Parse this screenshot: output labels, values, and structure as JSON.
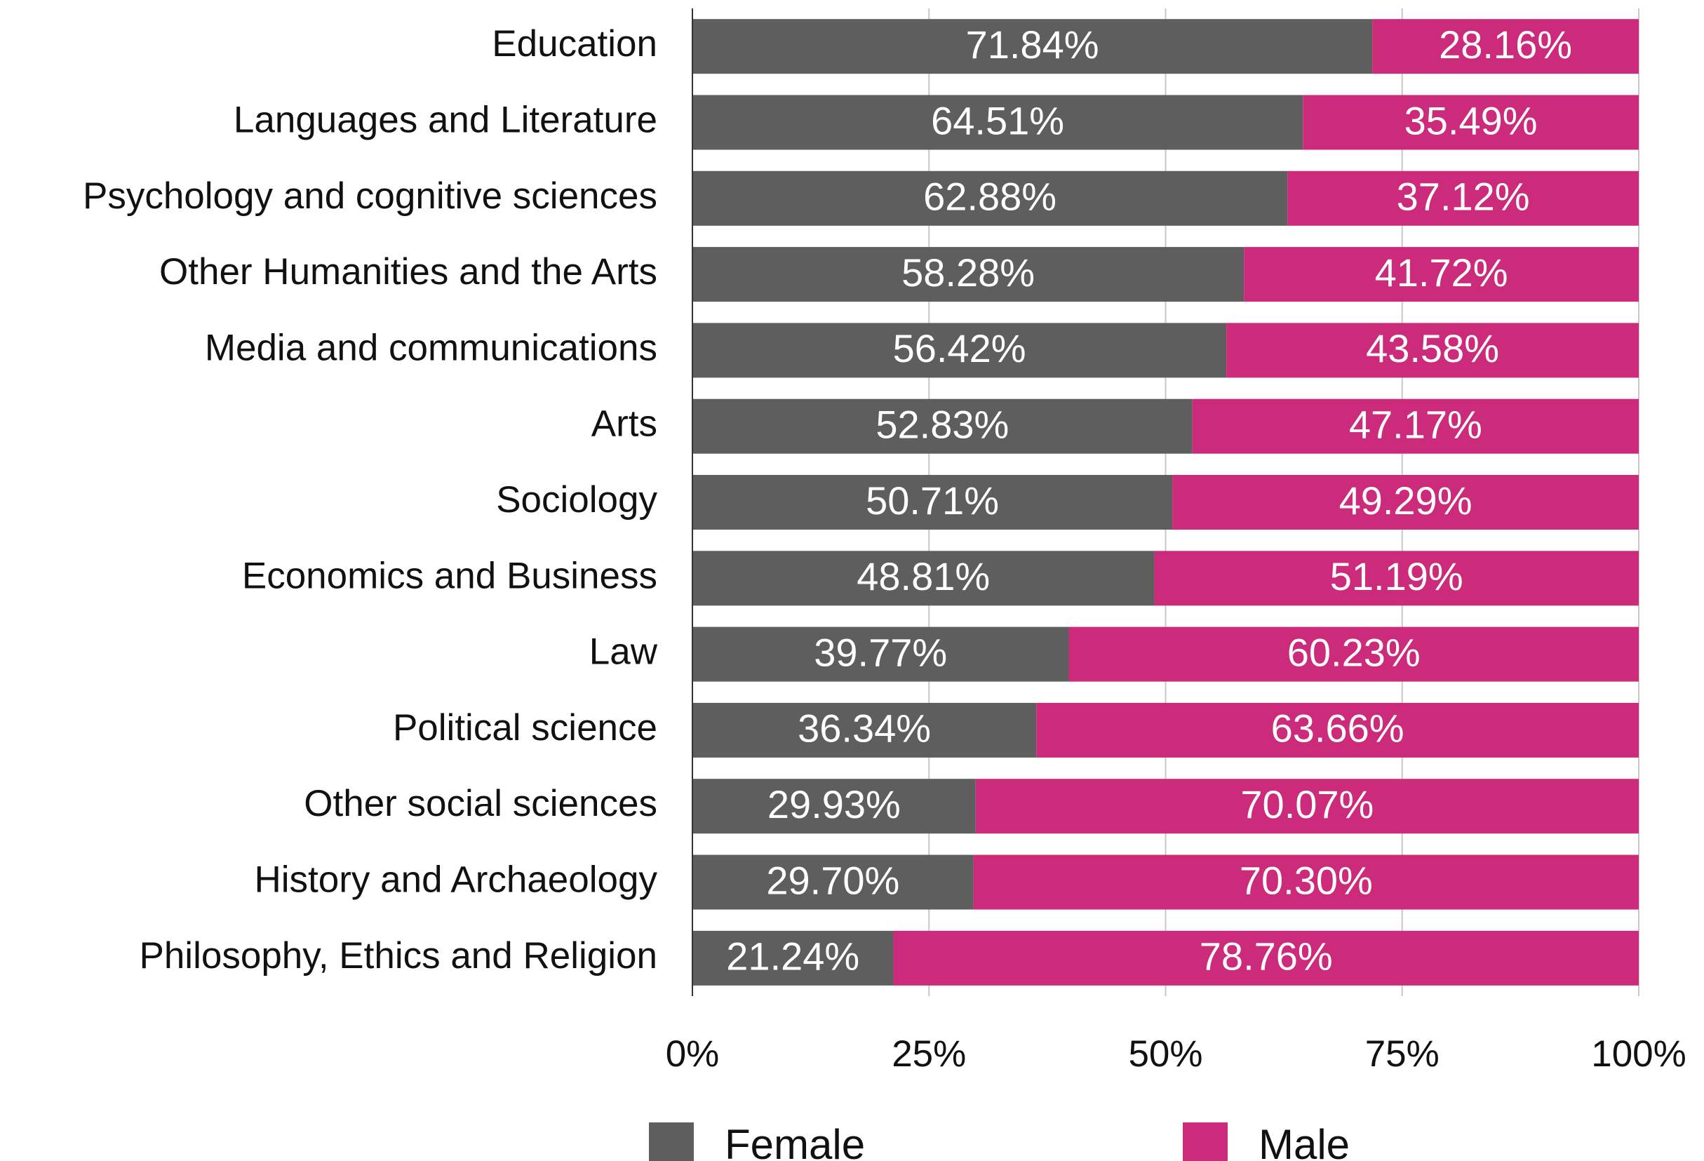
{
  "chart_data": {
    "type": "stacked-bar-horizontal",
    "categories": [
      "Education",
      "Languages and Literature",
      "Psychology and cognitive sciences",
      "Other Humanities and the Arts",
      "Media and communications",
      "Arts",
      "Sociology",
      "Economics and Business",
      "Law",
      "Political science",
      "Other social sciences",
      "History and Archaeology",
      "Philosophy, Ethics and Religion"
    ],
    "series": [
      {
        "name": "Female",
        "color": "#5e5e5e",
        "values": [
          71.84,
          64.51,
          62.88,
          58.28,
          56.42,
          52.83,
          50.71,
          48.81,
          39.77,
          36.34,
          29.93,
          29.7,
          21.24
        ],
        "value_labels": [
          "71.84%",
          "64.51%",
          "62.88%",
          "58.28%",
          "56.42%",
          "52.83%",
          "50.71%",
          "48.81%",
          "39.77%",
          "36.34%",
          "29.93%",
          "29.70%",
          "21.24%"
        ]
      },
      {
        "name": "Male",
        "color": "#cc2a7a",
        "values": [
          28.16,
          35.49,
          37.12,
          41.72,
          43.58,
          47.17,
          49.29,
          51.19,
          60.23,
          63.66,
          70.07,
          70.3,
          78.76
        ],
        "value_labels": [
          "28.16%",
          "35.49%",
          "37.12%",
          "41.72%",
          "43.58%",
          "47.17%",
          "49.29%",
          "51.19%",
          "60.23%",
          "63.66%",
          "70.07%",
          "70.30%",
          "78.76%"
        ]
      }
    ],
    "xlim": [
      0,
      100
    ],
    "xticks": [
      {
        "value": 0,
        "label": "0%"
      },
      {
        "value": 25,
        "label": "25%"
      },
      {
        "value": 50,
        "label": "50%"
      },
      {
        "value": 75,
        "label": "75%"
      },
      {
        "value": 100,
        "label": "100%"
      }
    ],
    "grid": true,
    "legend": "bottom"
  }
}
